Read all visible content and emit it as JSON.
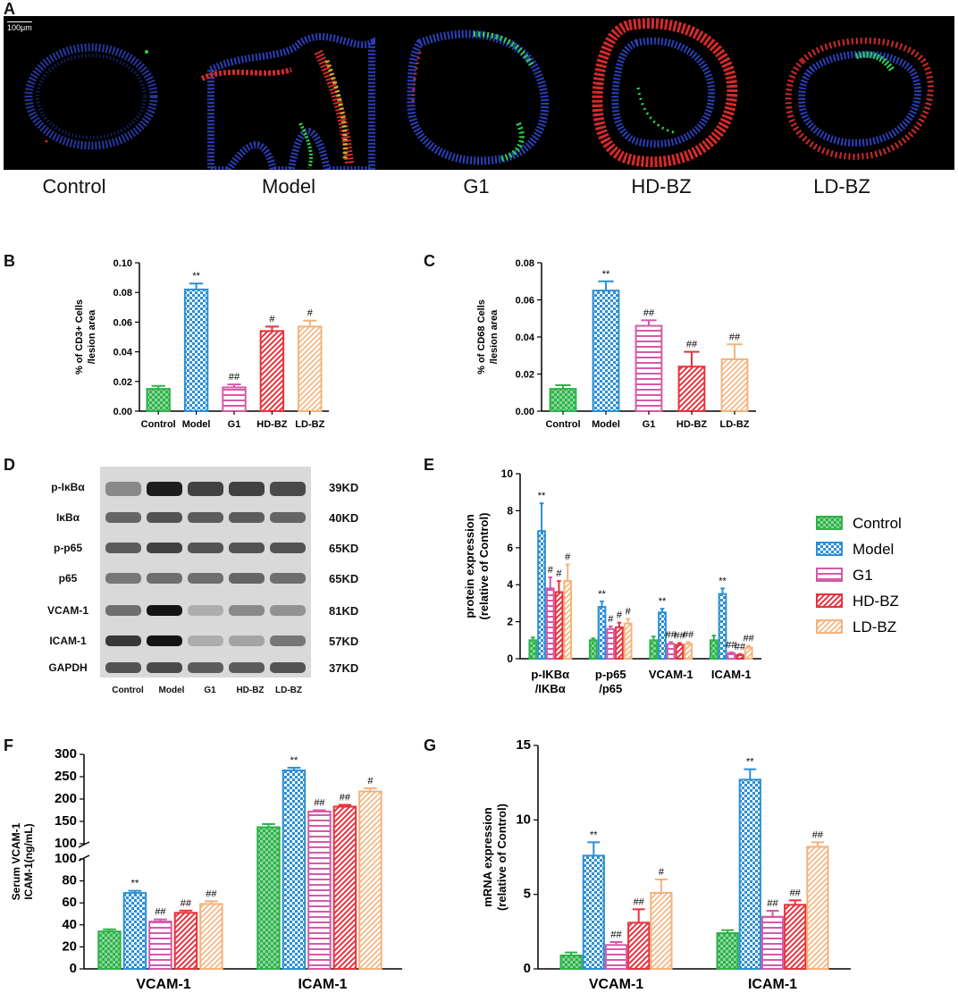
{
  "panels": {
    "A": {
      "letter": "A",
      "scale_bar": "100μm",
      "groups": [
        "Control",
        "Model",
        "G1",
        "HD-BZ",
        "LD-BZ"
      ]
    },
    "B": {
      "letter": "B",
      "ylabel_line1": "% of CD3+ Cells",
      "ylabel_line2": "/lesion area"
    },
    "C": {
      "letter": "C",
      "ylabel_line1": "% of CD68 Cells",
      "ylabel_line2": "/lesion area"
    },
    "D": {
      "letter": "D",
      "proteins": [
        "p-IκBα",
        "IκBα",
        "p-p65",
        "p65",
        "VCAM-1",
        "ICAM-1",
        "GAPDH"
      ],
      "sizes": [
        "39KD",
        "40KD",
        "65KD",
        "65KD",
        "81KD",
        "57KD",
        "37KD"
      ],
      "lanes": [
        "Control",
        "Model",
        "G1",
        "HD-BZ",
        "LD-BZ"
      ]
    },
    "E": {
      "letter": "E",
      "ylabel_line1": "protein expression",
      "ylabel_line2": "(relative of Control)"
    },
    "F": {
      "letter": "F",
      "ylabel_line1": "Serum VCAM-1",
      "ylabel_line2": "ICAM-1(ng/mL)"
    },
    "G": {
      "letter": "G",
      "ylabel_line1": "mRNA expression",
      "ylabel_line2": "(relative of Control)"
    }
  },
  "legend": {
    "items": [
      "Control",
      "Model",
      "G1",
      "HD-BZ",
      "LD-BZ"
    ]
  },
  "colors": {
    "Control": "#2db34a",
    "Model": "#2b8fd6",
    "G1": "#d45aa8",
    "HD-BZ": "#e8323c",
    "LD-BZ": "#f5b27a"
  },
  "chart_data": [
    {
      "id": "B",
      "type": "bar",
      "categories": [
        "Control",
        "Model",
        "G1",
        "HD-BZ",
        "LD-BZ"
      ],
      "values": [
        0.015,
        0.082,
        0.016,
        0.054,
        0.057
      ],
      "errors": [
        0.002,
        0.004,
        0.002,
        0.003,
        0.004
      ],
      "annotations": [
        "",
        "**",
        "##",
        "#",
        "#"
      ],
      "ylim": [
        0,
        0.1
      ],
      "yticks": [
        "0.00",
        "0.02",
        "0.04",
        "0.06",
        "0.08",
        "0.10"
      ],
      "ylabel": "% of CD3+ Cells /lesion area"
    },
    {
      "id": "C",
      "type": "bar",
      "categories": [
        "Control",
        "Model",
        "G1",
        "HD-BZ",
        "LD-BZ"
      ],
      "values": [
        0.012,
        0.065,
        0.046,
        0.024,
        0.028
      ],
      "errors": [
        0.002,
        0.005,
        0.003,
        0.008,
        0.008
      ],
      "annotations": [
        "",
        "**",
        "##",
        "##",
        "##"
      ],
      "ylim": [
        0,
        0.08
      ],
      "yticks": [
        "0.00",
        "0.02",
        "0.04",
        "0.06",
        "0.08"
      ],
      "ylabel": "% of CD68 Cells /lesion area"
    },
    {
      "id": "E",
      "type": "bar",
      "categories": [
        "p-IKBα\n/IKBα",
        "p-p65\n/p65",
        "VCAM-1",
        "ICAM-1"
      ],
      "series": [
        {
          "name": "Control",
          "values": [
            1.0,
            1.0,
            1.0,
            1.0
          ],
          "errors": [
            0.15,
            0.1,
            0.2,
            0.25
          ],
          "annotations": [
            "",
            "",
            "",
            ""
          ]
        },
        {
          "name": "Model",
          "values": [
            6.9,
            2.8,
            2.5,
            3.5
          ],
          "errors": [
            1.5,
            0.3,
            0.2,
            0.3
          ],
          "annotations": [
            "**",
            "**",
            "**",
            "**"
          ]
        },
        {
          "name": "G1",
          "values": [
            3.8,
            1.6,
            0.8,
            0.3
          ],
          "errors": [
            0.6,
            0.15,
            0.1,
            0.05
          ],
          "annotations": [
            "#",
            "#",
            "##",
            "##"
          ]
        },
        {
          "name": "HD-BZ",
          "values": [
            3.6,
            1.7,
            0.75,
            0.2
          ],
          "errors": [
            0.6,
            0.25,
            0.1,
            0.05
          ],
          "annotations": [
            "#",
            "#",
            "##",
            "##"
          ]
        },
        {
          "name": "LD-BZ",
          "values": [
            4.2,
            1.9,
            0.8,
            0.6
          ],
          "errors": [
            0.9,
            0.25,
            0.1,
            0.1
          ],
          "annotations": [
            "#",
            "#",
            "##",
            "##"
          ]
        }
      ],
      "ylim": [
        0,
        10
      ],
      "yticks": [
        "0",
        "2",
        "4",
        "6",
        "8",
        "10"
      ],
      "ylabel": "protein expression (relative of Control)"
    },
    {
      "id": "F",
      "type": "bar",
      "categories": [
        "VCAM-1",
        "ICAM-1"
      ],
      "series": [
        {
          "name": "Control",
          "values": [
            34,
            137
          ],
          "errors": [
            2,
            7
          ],
          "annotations": [
            "",
            ""
          ]
        },
        {
          "name": "Model",
          "values": [
            69,
            264
          ],
          "errors": [
            2,
            6
          ],
          "annotations": [
            "**",
            "**"
          ]
        },
        {
          "name": "G1",
          "values": [
            43,
            172
          ],
          "errors": [
            2,
            3
          ],
          "annotations": [
            "##",
            "##"
          ]
        },
        {
          "name": "HD-BZ",
          "values": [
            51,
            183
          ],
          "errors": [
            2,
            4
          ],
          "annotations": [
            "##",
            "##"
          ]
        },
        {
          "name": "LD-BZ",
          "values": [
            59,
            217
          ],
          "errors": [
            2.5,
            7
          ],
          "annotations": [
            "##",
            "#"
          ]
        }
      ],
      "axis_break": {
        "lower": [
          0,
          100
        ],
        "upper": [
          100,
          300
        ]
      },
      "yticks_lower": [
        "0",
        "20",
        "40",
        "60",
        "80",
        "100"
      ],
      "yticks_upper": [
        "100",
        "150",
        "200",
        "250",
        "300"
      ],
      "ylabel": "Serum VCAM-1 ICAM-1(ng/mL)"
    },
    {
      "id": "G",
      "type": "bar",
      "categories": [
        "VCAM-1",
        "ICAM-1"
      ],
      "series": [
        {
          "name": "Control",
          "values": [
            0.9,
            2.4
          ],
          "errors": [
            0.2,
            0.2
          ],
          "annotations": [
            "",
            ""
          ]
        },
        {
          "name": "Model",
          "values": [
            7.6,
            12.7
          ],
          "errors": [
            0.9,
            0.7
          ],
          "annotations": [
            "**",
            "**"
          ]
        },
        {
          "name": "G1",
          "values": [
            1.6,
            3.5
          ],
          "errors": [
            0.2,
            0.4
          ],
          "annotations": [
            "##",
            "##"
          ]
        },
        {
          "name": "HD-BZ",
          "values": [
            3.1,
            4.3
          ],
          "errors": [
            0.9,
            0.3
          ],
          "annotations": [
            "##",
            "##"
          ]
        },
        {
          "name": "LD-BZ",
          "values": [
            5.1,
            8.2
          ],
          "errors": [
            0.9,
            0.3
          ],
          "annotations": [
            "#",
            "##"
          ]
        }
      ],
      "ylim": [
        0,
        15
      ],
      "yticks": [
        "0",
        "5",
        "10",
        "15"
      ],
      "ylabel": "mRNA expression (relative of Control)"
    }
  ]
}
